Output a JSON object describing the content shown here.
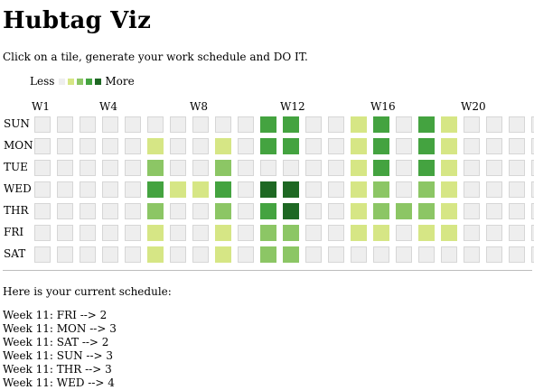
{
  "page": {
    "title": "Hubtag Viz",
    "instructions": "Click on a tile, generate your work schedule and DO IT."
  },
  "legend": {
    "less_label": "Less",
    "more_label": "More",
    "colors": [
      "#eeeeee",
      "#d6e685",
      "#8cc665",
      "#44a340",
      "#1e6823"
    ]
  },
  "week_labels": [
    {
      "week": 1,
      "label": "W1"
    },
    {
      "week": 4,
      "label": "W4"
    },
    {
      "week": 8,
      "label": "W8"
    },
    {
      "week": 12,
      "label": "W12"
    },
    {
      "week": 16,
      "label": "W16"
    },
    {
      "week": 20,
      "label": "W20"
    }
  ],
  "days": [
    "SUN",
    "MON",
    "TUE",
    "WED",
    "THR",
    "FRI",
    "SAT"
  ],
  "grid_levels": [
    [
      0,
      0,
      0,
      0,
      0,
      0,
      0,
      0,
      0,
      0,
      3,
      3,
      0,
      0,
      1,
      3,
      0,
      3,
      1,
      0,
      0,
      0,
      0
    ],
    [
      0,
      0,
      0,
      0,
      0,
      1,
      0,
      0,
      1,
      0,
      3,
      3,
      0,
      0,
      1,
      3,
      0,
      3,
      1,
      0,
      0,
      0,
      0
    ],
    [
      0,
      0,
      0,
      0,
      0,
      2,
      0,
      0,
      2,
      0,
      0,
      0,
      0,
      0,
      1,
      3,
      0,
      3,
      1,
      0,
      0,
      0,
      0
    ],
    [
      0,
      0,
      0,
      0,
      0,
      3,
      1,
      1,
      3,
      0,
      4,
      4,
      0,
      0,
      1,
      2,
      0,
      2,
      1,
      0,
      0,
      0,
      0
    ],
    [
      0,
      0,
      0,
      0,
      0,
      2,
      0,
      0,
      2,
      0,
      3,
      4,
      0,
      0,
      1,
      2,
      2,
      2,
      1,
      0,
      0,
      0,
      0
    ],
    [
      0,
      0,
      0,
      0,
      0,
      1,
      0,
      0,
      1,
      0,
      2,
      2,
      0,
      0,
      1,
      1,
      0,
      1,
      1,
      0,
      0,
      0,
      0
    ],
    [
      0,
      0,
      0,
      0,
      0,
      1,
      0,
      0,
      1,
      0,
      2,
      2,
      0,
      0,
      0,
      0,
      0,
      0,
      0,
      0,
      0,
      0,
      0
    ]
  ],
  "schedule": {
    "title": "Here is your current schedule:",
    "items": [
      "Week 11: FRI --> 2",
      "Week 11: MON --> 3",
      "Week 11: SAT --> 2",
      "Week 11: SUN --> 3",
      "Week 11: THR --> 3",
      "Week 11: WED --> 4"
    ]
  }
}
